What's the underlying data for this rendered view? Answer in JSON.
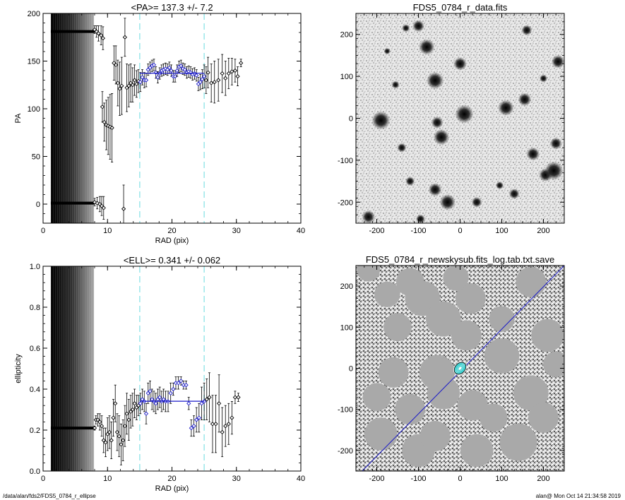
{
  "colors": {
    "fit_line": "#1c1cc8",
    "range_marker": "#9ae6ea",
    "point": "#000000",
    "contour": "#40d0d0"
  },
  "footer": {
    "left": "/data/alan/fds2/FDS5_0784_r_ellipse",
    "right": "alan@  Mon Oct 14 21:34:58 2019"
  },
  "chart_data": [
    {
      "id": "pa",
      "type": "scatter",
      "title": "<PA>= 137.3 +/-   7.2",
      "xlabel": "RAD (pix)",
      "ylabel": "PA",
      "xlim": [
        0,
        40
      ],
      "ylim": [
        -20,
        200
      ],
      "xticks": [
        "0",
        "10",
        "20",
        "30",
        "40"
      ],
      "yticks": [
        "0",
        "50",
        "100",
        "150",
        "200"
      ],
      "xtick_values": [
        0,
        10,
        20,
        30,
        40
      ],
      "ytick_values": [
        0,
        50,
        100,
        150,
        200
      ],
      "fit_range": [
        15,
        25
      ],
      "fit_value": 137.3,
      "core_band": [
        1.2,
        7.9
      ],
      "dense_tracks": [
        {
          "y": 181,
          "from": 1.2,
          "to": 8.0
        },
        {
          "y": 1,
          "from": 1.2,
          "to": 8.0
        }
      ],
      "points": [
        {
          "x": 8.0,
          "y": 183,
          "e": 4
        },
        {
          "x": 8.3,
          "y": 181,
          "e": 6
        },
        {
          "x": 8.6,
          "y": 179,
          "e": 8
        },
        {
          "x": 9.0,
          "y": 177,
          "e": 10
        },
        {
          "x": 9.3,
          "y": 174,
          "e": 12
        },
        {
          "x": 8.0,
          "y": 2,
          "e": 4
        },
        {
          "x": 8.4,
          "y": 1,
          "e": 6
        },
        {
          "x": 8.8,
          "y": 0,
          "e": 8
        },
        {
          "x": 9.1,
          "y": -2,
          "e": 10
        },
        {
          "x": 9.4,
          "y": -4,
          "e": 12
        },
        {
          "x": 9.2,
          "y": 102,
          "e": 16
        },
        {
          "x": 9.5,
          "y": 86,
          "e": 20
        },
        {
          "x": 9.8,
          "y": 83,
          "e": 26
        },
        {
          "x": 10.1,
          "y": 82,
          "e": 30
        },
        {
          "x": 10.4,
          "y": 81,
          "e": 34
        },
        {
          "x": 10.7,
          "y": 80,
          "e": 36
        },
        {
          "x": 11.0,
          "y": 148,
          "e": 18
        },
        {
          "x": 11.3,
          "y": 146,
          "e": 20
        },
        {
          "x": 11.6,
          "y": 127,
          "e": 24
        },
        {
          "x": 11.9,
          "y": 121,
          "e": 28
        },
        {
          "x": 12.2,
          "y": 124,
          "e": 30
        },
        {
          "x": 12.5,
          "y": -5,
          "e": 25
        },
        {
          "x": 12.7,
          "y": 175,
          "e": 20
        },
        {
          "x": 13.0,
          "y": 122,
          "e": 25
        },
        {
          "x": 13.3,
          "y": 124,
          "e": 22
        },
        {
          "x": 13.6,
          "y": 127,
          "e": 20
        },
        {
          "x": 13.9,
          "y": 125,
          "e": 18
        },
        {
          "x": 14.2,
          "y": 130,
          "e": 16
        },
        {
          "x": 14.5,
          "y": 126,
          "e": 14
        },
        {
          "x": 14.8,
          "y": 129,
          "e": 12
        },
        {
          "x": 15.1,
          "y": 128,
          "e": 10
        },
        {
          "x": 15.4,
          "y": 133,
          "e": 8
        },
        {
          "x": 15.7,
          "y": 130,
          "e": 8
        },
        {
          "x": 16.0,
          "y": 130,
          "e": 7
        },
        {
          "x": 16.3,
          "y": 141,
          "e": 6
        },
        {
          "x": 16.6,
          "y": 143,
          "e": 6
        },
        {
          "x": 16.9,
          "y": 145,
          "e": 6
        },
        {
          "x": 17.2,
          "y": 146,
          "e": 6
        },
        {
          "x": 17.5,
          "y": 138,
          "e": 6
        },
        {
          "x": 17.8,
          "y": 133,
          "e": 6
        },
        {
          "x": 18.1,
          "y": 137,
          "e": 6
        },
        {
          "x": 18.4,
          "y": 140,
          "e": 6
        },
        {
          "x": 18.7,
          "y": 141,
          "e": 6
        },
        {
          "x": 19.0,
          "y": 142,
          "e": 6
        },
        {
          "x": 19.3,
          "y": 141,
          "e": 6
        },
        {
          "x": 19.6,
          "y": 143,
          "e": 6
        },
        {
          "x": 19.9,
          "y": 140,
          "e": 6
        },
        {
          "x": 20.2,
          "y": 134,
          "e": 6
        },
        {
          "x": 20.5,
          "y": 134,
          "e": 6
        },
        {
          "x": 20.8,
          "y": 140,
          "e": 6
        },
        {
          "x": 21.1,
          "y": 144,
          "e": 6
        },
        {
          "x": 21.4,
          "y": 145,
          "e": 6
        },
        {
          "x": 21.7,
          "y": 142,
          "e": 6
        },
        {
          "x": 22.0,
          "y": 141,
          "e": 6
        },
        {
          "x": 22.3,
          "y": 138,
          "e": 6
        },
        {
          "x": 22.6,
          "y": 139,
          "e": 6
        },
        {
          "x": 22.9,
          "y": 138,
          "e": 6
        },
        {
          "x": 23.2,
          "y": 136,
          "e": 6
        },
        {
          "x": 23.5,
          "y": 137,
          "e": 6
        },
        {
          "x": 23.8,
          "y": 135,
          "e": 6
        },
        {
          "x": 24.1,
          "y": 126,
          "e": 7
        },
        {
          "x": 24.4,
          "y": 128,
          "e": 8
        },
        {
          "x": 24.7,
          "y": 131,
          "e": 10
        },
        {
          "x": 25.0,
          "y": 134,
          "e": 12
        },
        {
          "x": 25.3,
          "y": 130,
          "e": 14
        },
        {
          "x": 25.6,
          "y": 138,
          "e": 16
        },
        {
          "x": 26.1,
          "y": 127,
          "e": 20
        },
        {
          "x": 26.6,
          "y": 128,
          "e": 22
        },
        {
          "x": 27.2,
          "y": 130,
          "e": 22
        },
        {
          "x": 27.8,
          "y": 137,
          "e": 20
        },
        {
          "x": 28.3,
          "y": 132,
          "e": 18
        },
        {
          "x": 28.8,
          "y": 137,
          "e": 16
        },
        {
          "x": 29.3,
          "y": 139,
          "e": 14
        },
        {
          "x": 29.8,
          "y": 140,
          "e": 12
        },
        {
          "x": 30.2,
          "y": 134,
          "e": 10
        },
        {
          "x": 30.7,
          "y": 148,
          "e": 4
        }
      ]
    },
    {
      "id": "ell",
      "type": "scatter",
      "title": "<ELL>= 0.341 +/-  0.062",
      "xlabel": "RAD (pix)",
      "ylabel": "ellipticity",
      "xlim": [
        0,
        40
      ],
      "ylim": [
        0,
        1
      ],
      "xticks": [
        "0",
        "10",
        "20",
        "30",
        "40"
      ],
      "yticks": [
        "0.0",
        "0.2",
        "0.4",
        "0.6",
        "0.8",
        "1.0"
      ],
      "xtick_values": [
        0,
        10,
        20,
        30,
        40
      ],
      "ytick_values": [
        0,
        0.2,
        0.4,
        0.6,
        0.8,
        1.0
      ],
      "fit_range": [
        15,
        25
      ],
      "fit_value": 0.341,
      "core_band": [
        1.2,
        7.9
      ],
      "dense_tracks": [
        {
          "y": 0.21,
          "from": 1.2,
          "to": 7.9
        }
      ],
      "points": [
        {
          "x": 8.0,
          "y": 0.21,
          "e": 0.01
        },
        {
          "x": 8.2,
          "y": 0.25,
          "e": 0.02
        },
        {
          "x": 8.5,
          "y": 0.25,
          "e": 0.03
        },
        {
          "x": 8.8,
          "y": 0.24,
          "e": 0.04
        },
        {
          "x": 9.1,
          "y": 0.22,
          "e": 0.05
        },
        {
          "x": 9.4,
          "y": 0.15,
          "e": 0.06
        },
        {
          "x": 9.7,
          "y": 0.14,
          "e": 0.07
        },
        {
          "x": 10.0,
          "y": 0.18,
          "e": 0.08
        },
        {
          "x": 10.3,
          "y": 0.19,
          "e": 0.08
        },
        {
          "x": 10.6,
          "y": 0.15,
          "e": 0.09
        },
        {
          "x": 10.9,
          "y": 0.26,
          "e": 0.09
        },
        {
          "x": 11.2,
          "y": 0.33,
          "e": 0.09
        },
        {
          "x": 11.5,
          "y": 0.19,
          "e": 0.09
        },
        {
          "x": 11.8,
          "y": 0.17,
          "e": 0.1
        },
        {
          "x": 12.1,
          "y": 0.13,
          "e": 0.1
        },
        {
          "x": 12.4,
          "y": 0.15,
          "e": 0.1
        },
        {
          "x": 12.7,
          "y": 0.22,
          "e": 0.1
        },
        {
          "x": 13.0,
          "y": 0.28,
          "e": 0.1
        },
        {
          "x": 13.3,
          "y": 0.25,
          "e": 0.1
        },
        {
          "x": 13.6,
          "y": 0.29,
          "e": 0.08
        },
        {
          "x": 13.9,
          "y": 0.3,
          "e": 0.08
        },
        {
          "x": 14.2,
          "y": 0.33,
          "e": 0.07
        },
        {
          "x": 14.5,
          "y": 0.31,
          "e": 0.06
        },
        {
          "x": 14.8,
          "y": 0.32,
          "e": 0.05
        },
        {
          "x": 15.1,
          "y": 0.33,
          "e": 0.05
        },
        {
          "x": 15.4,
          "y": 0.35,
          "e": 0.05
        },
        {
          "x": 15.7,
          "y": 0.34,
          "e": 0.05
        },
        {
          "x": 16.0,
          "y": 0.28,
          "e": 0.05
        },
        {
          "x": 16.3,
          "y": 0.38,
          "e": 0.05
        },
        {
          "x": 16.6,
          "y": 0.39,
          "e": 0.05
        },
        {
          "x": 16.9,
          "y": 0.35,
          "e": 0.05
        },
        {
          "x": 17.2,
          "y": 0.34,
          "e": 0.05
        },
        {
          "x": 17.5,
          "y": 0.33,
          "e": 0.05
        },
        {
          "x": 17.8,
          "y": 0.35,
          "e": 0.05
        },
        {
          "x": 18.1,
          "y": 0.36,
          "e": 0.05
        },
        {
          "x": 18.4,
          "y": 0.34,
          "e": 0.05
        },
        {
          "x": 18.7,
          "y": 0.35,
          "e": 0.05
        },
        {
          "x": 19.0,
          "y": 0.34,
          "e": 0.05
        },
        {
          "x": 19.4,
          "y": 0.34,
          "e": 0.05
        },
        {
          "x": 19.8,
          "y": 0.38,
          "e": 0.05
        },
        {
          "x": 20.2,
          "y": 0.4,
          "e": 0.03
        },
        {
          "x": 20.6,
          "y": 0.43,
          "e": 0.03
        },
        {
          "x": 21.0,
          "y": 0.43,
          "e": 0.03
        },
        {
          "x": 21.4,
          "y": 0.44,
          "e": 0.02
        },
        {
          "x": 21.8,
          "y": 0.42,
          "e": 0.02
        },
        {
          "x": 22.2,
          "y": 0.42,
          "e": 0.02
        },
        {
          "x": 22.6,
          "y": 0.33,
          "e": 0.03
        },
        {
          "x": 23.0,
          "y": 0.21,
          "e": 0.04
        },
        {
          "x": 23.4,
          "y": 0.22,
          "e": 0.05
        },
        {
          "x": 23.8,
          "y": 0.25,
          "e": 0.06
        },
        {
          "x": 24.2,
          "y": 0.26,
          "e": 0.07
        },
        {
          "x": 24.6,
          "y": 0.33,
          "e": 0.08
        },
        {
          "x": 25.0,
          "y": 0.34,
          "e": 0.09
        },
        {
          "x": 25.4,
          "y": 0.35,
          "e": 0.1
        },
        {
          "x": 25.8,
          "y": 0.36,
          "e": 0.12
        },
        {
          "x": 26.3,
          "y": 0.23,
          "e": 0.14
        },
        {
          "x": 26.8,
          "y": 0.23,
          "e": 0.14
        },
        {
          "x": 27.3,
          "y": 0.33,
          "e": 0.14
        },
        {
          "x": 27.8,
          "y": 0.19,
          "e": 0.12
        },
        {
          "x": 28.3,
          "y": 0.22,
          "e": 0.1
        },
        {
          "x": 28.8,
          "y": 0.23,
          "e": 0.1
        },
        {
          "x": 29.3,
          "y": 0.26,
          "e": 0.08
        },
        {
          "x": 29.8,
          "y": 0.36,
          "e": 0.03
        },
        {
          "x": 30.3,
          "y": 0.36,
          "e": 0.02
        }
      ]
    },
    {
      "id": "data_img",
      "type": "heatmap",
      "title": "FDS5_0784_r_data.fits",
      "xlim": [
        -250,
        250
      ],
      "ylim": [
        -250,
        250
      ],
      "xticks": [
        "-200",
        "-100",
        "0",
        "100",
        "200"
      ],
      "yticks": [
        "-200",
        "-100",
        "0",
        "100",
        "200"
      ],
      "xtick_values": [
        -200,
        -100,
        0,
        100,
        200
      ],
      "ytick_values": [
        -200,
        -100,
        0,
        100,
        200
      ],
      "sources": [
        {
          "x": -190,
          "y": -5,
          "r": 14
        },
        {
          "x": -100,
          "y": 220,
          "r": 9
        },
        {
          "x": -80,
          "y": 170,
          "r": 12
        },
        {
          "x": -60,
          "y": 90,
          "r": 13
        },
        {
          "x": -55,
          "y": -10,
          "r": 9
        },
        {
          "x": -60,
          "y": -170,
          "r": 10
        },
        {
          "x": -45,
          "y": -45,
          "r": 12
        },
        {
          "x": -30,
          "y": -200,
          "r": 12
        },
        {
          "x": 0,
          "y": 130,
          "r": 10
        },
        {
          "x": 10,
          "y": 10,
          "r": 14
        },
        {
          "x": 40,
          "y": -200,
          "r": 8
        },
        {
          "x": 110,
          "y": 25,
          "r": 12
        },
        {
          "x": 130,
          "y": -180,
          "r": 8
        },
        {
          "x": 155,
          "y": 45,
          "r": 10
        },
        {
          "x": 160,
          "y": 210,
          "r": 8
        },
        {
          "x": 175,
          "y": -85,
          "r": 10
        },
        {
          "x": 205,
          "y": -135,
          "r": 10
        },
        {
          "x": 225,
          "y": -125,
          "r": 14
        },
        {
          "x": 230,
          "y": -60,
          "r": 9
        },
        {
          "x": 235,
          "y": 135,
          "r": 10
        },
        {
          "x": -155,
          "y": 80,
          "r": 6
        },
        {
          "x": -140,
          "y": -70,
          "r": 7
        },
        {
          "x": -220,
          "y": -235,
          "r": 10
        },
        {
          "x": -95,
          "y": -240,
          "r": 7
        },
        {
          "x": -130,
          "y": 215,
          "r": 6
        },
        {
          "x": 95,
          "y": -160,
          "r": 6
        },
        {
          "x": -120,
          "y": -150,
          "r": 7
        },
        {
          "x": -175,
          "y": 160,
          "r": 5
        },
        {
          "x": 200,
          "y": 95,
          "r": 6
        }
      ]
    },
    {
      "id": "sky_img",
      "type": "heatmap",
      "title": "FDS5_0784_r_newskysub.fits_log.tab.txt.save",
      "xlim": [
        -250,
        250
      ],
      "ylim": [
        -250,
        250
      ],
      "xticks": [
        "-200",
        "-100",
        "0",
        "100",
        "200"
      ],
      "yticks": [
        "-200",
        "-100",
        "0",
        "100",
        "200"
      ],
      "xtick_values": [
        -200,
        -100,
        0,
        100,
        200
      ],
      "ytick_values": [
        -200,
        -100,
        0,
        100,
        200
      ],
      "axis_line": [
        [
          -235,
          -250
        ],
        [
          250,
          250
        ]
      ],
      "center_contours": [
        {
          "a": 15,
          "b": 11
        },
        {
          "a": 12,
          "b": 9
        },
        {
          "a": 9,
          "b": 7
        },
        {
          "a": 6,
          "b": 4
        }
      ],
      "pa_deg": 137.3,
      "masks": [
        {
          "x": -175,
          "y": 180,
          "r": 22
        },
        {
          "x": -160,
          "y": -10,
          "r": 26
        },
        {
          "x": -120,
          "y": 210,
          "r": 24
        },
        {
          "x": -90,
          "y": 170,
          "r": 30
        },
        {
          "x": -40,
          "y": 120,
          "r": 30
        },
        {
          "x": -55,
          "y": -10,
          "r": 30
        },
        {
          "x": -40,
          "y": -60,
          "r": 28
        },
        {
          "x": -120,
          "y": -100,
          "r": 26
        },
        {
          "x": -190,
          "y": -160,
          "r": 28
        },
        {
          "x": -100,
          "y": -200,
          "r": 28
        },
        {
          "x": -60,
          "y": -165,
          "r": 26
        },
        {
          "x": 40,
          "y": -200,
          "r": 28
        },
        {
          "x": 30,
          "y": -90,
          "r": 26
        },
        {
          "x": 15,
          "y": 80,
          "r": 26
        },
        {
          "x": 25,
          "y": 170,
          "r": 26
        },
        {
          "x": 100,
          "y": 30,
          "r": 30
        },
        {
          "x": 170,
          "y": -60,
          "r": 30
        },
        {
          "x": 140,
          "y": -180,
          "r": 32
        },
        {
          "x": 200,
          "y": -120,
          "r": 26
        },
        {
          "x": 210,
          "y": 80,
          "r": 28
        },
        {
          "x": 170,
          "y": 210,
          "r": 26
        },
        {
          "x": 100,
          "y": 120,
          "r": 22
        },
        {
          "x": -200,
          "y": -70,
          "r": 24
        },
        {
          "x": 80,
          "y": -120,
          "r": 24
        },
        {
          "x": -150,
          "y": 100,
          "r": 24
        },
        {
          "x": 230,
          "y": 10,
          "r": 22
        },
        {
          "x": -10,
          "y": 220,
          "r": 22
        },
        {
          "x": -220,
          "y": 240,
          "r": 20
        }
      ]
    }
  ]
}
